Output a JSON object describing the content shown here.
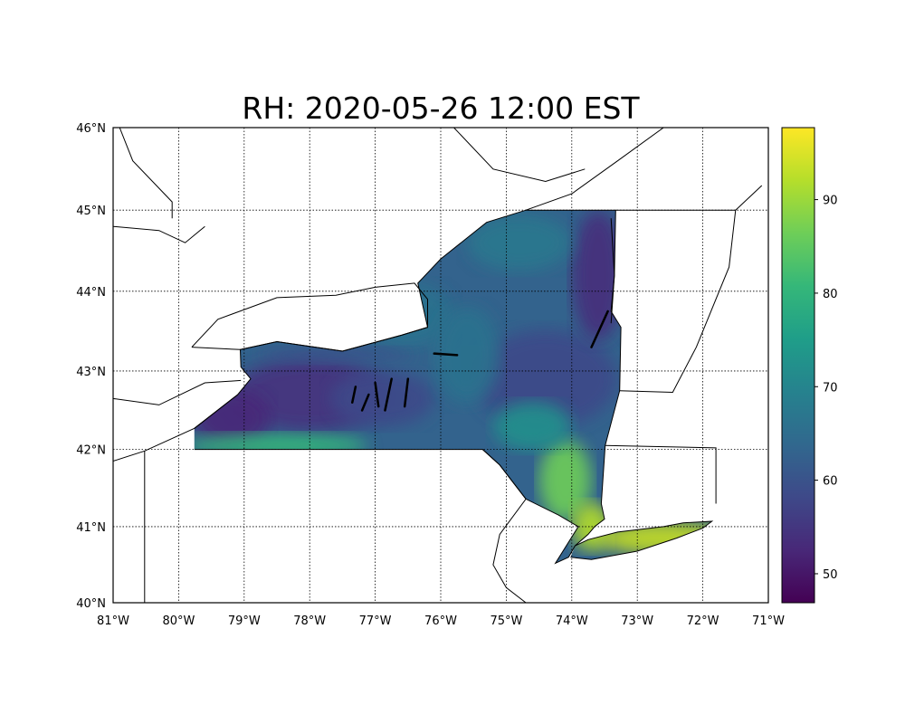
{
  "title": "RH: 2020-05-26 12:00 EST",
  "map": {
    "projection": "mercator",
    "lon_range": [
      -81,
      -71
    ],
    "lat_range": [
      40,
      46
    ],
    "lon_ticks": [
      -81,
      -80,
      -79,
      -78,
      -77,
      -76,
      -75,
      -74,
      -73,
      -72,
      -71
    ],
    "lon_labels": [
      "81°W",
      "80°W",
      "79°W",
      "78°W",
      "77°W",
      "76°W",
      "75°W",
      "74°W",
      "73°W",
      "72°W",
      "71°W"
    ],
    "lat_ticks": [
      40,
      41,
      42,
      43,
      44,
      45,
      46
    ],
    "lat_labels": [
      "40°N",
      "41°N",
      "42°N",
      "43°N",
      "44°N",
      "45°N",
      "46°N"
    ],
    "gridlines": "dotted",
    "field": "RH",
    "region": "New York State"
  },
  "colorbar": {
    "colormap": "viridis",
    "range": [
      46.9,
      97.7
    ],
    "ticks": [
      50,
      60,
      70,
      80,
      90
    ],
    "tick_labels": [
      "50",
      "60",
      "70",
      "80",
      "90"
    ],
    "colors": [
      "#440154",
      "#482878",
      "#3e4989",
      "#31688e",
      "#26828e",
      "#1f9e89",
      "#35b779",
      "#6ece58",
      "#b5de2b",
      "#fde725"
    ]
  }
}
